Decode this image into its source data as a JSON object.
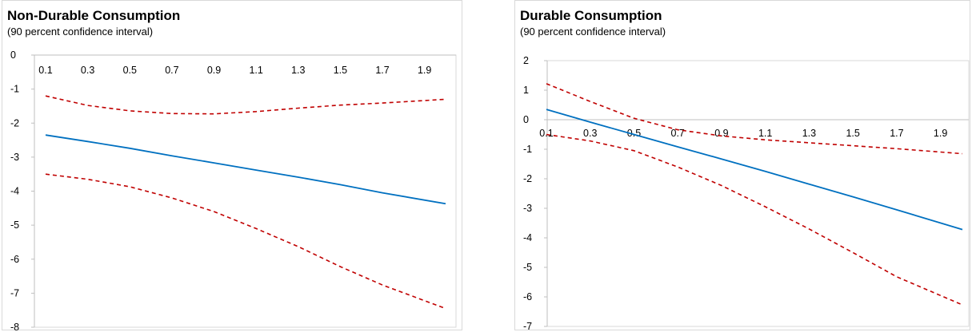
{
  "chart_data": [
    {
      "type": "line",
      "title": "Non-Durable Consumption",
      "subtitle": "(90 percent confidence interval)",
      "x": [
        0.1,
        0.3,
        0.5,
        0.7,
        0.9,
        1.1,
        1.3,
        1.5,
        1.7,
        1.9
      ],
      "xticks": [
        "0.1",
        "0.3",
        "0.5",
        "0.7",
        "0.9",
        "1.1",
        "1.3",
        "1.5",
        "1.7",
        "1.9"
      ],
      "xlim": [
        0.1,
        2.0
      ],
      "ylim": [
        -8,
        0
      ],
      "yticks": [
        0,
        -1,
        -2,
        -3,
        -4,
        -5,
        -6,
        -7,
        -8
      ],
      "xaxis_position": "top",
      "grid": false,
      "series": [
        {
          "role": "estimate",
          "color": "#0070C0",
          "dash": false,
          "points": [
            [
              0.1,
              -2.35
            ],
            [
              0.3,
              -2.54
            ],
            [
              0.5,
              -2.74
            ],
            [
              0.7,
              -2.96
            ],
            [
              0.9,
              -3.17
            ],
            [
              1.1,
              -3.38
            ],
            [
              1.3,
              -3.59
            ],
            [
              1.5,
              -3.81
            ],
            [
              1.7,
              -4.05
            ],
            [
              2.0,
              -4.37
            ]
          ]
        },
        {
          "role": "upper",
          "color": "#C00000",
          "dash": true,
          "points": [
            [
              0.1,
              -1.2
            ],
            [
              0.3,
              -1.48
            ],
            [
              0.5,
              -1.64
            ],
            [
              0.7,
              -1.72
            ],
            [
              0.9,
              -1.73
            ],
            [
              1.1,
              -1.66
            ],
            [
              1.3,
              -1.56
            ],
            [
              1.5,
              -1.47
            ],
            [
              1.7,
              -1.41
            ],
            [
              2.0,
              -1.3
            ]
          ]
        },
        {
          "role": "lower",
          "color": "#C00000",
          "dash": true,
          "points": [
            [
              0.1,
              -3.5
            ],
            [
              0.3,
              -3.65
            ],
            [
              0.5,
              -3.87
            ],
            [
              0.7,
              -4.2
            ],
            [
              0.9,
              -4.6
            ],
            [
              1.1,
              -5.1
            ],
            [
              1.3,
              -5.63
            ],
            [
              1.5,
              -6.22
            ],
            [
              1.7,
              -6.76
            ],
            [
              2.0,
              -7.45
            ]
          ]
        }
      ]
    },
    {
      "type": "line",
      "title": "Durable Consumption",
      "subtitle": "(90 percent confidence interval)",
      "x": [
        0.1,
        0.3,
        0.5,
        0.7,
        0.9,
        1.1,
        1.3,
        1.5,
        1.7,
        1.9
      ],
      "xticks": [
        "0.1",
        "0.3",
        "0.5",
        "0.7",
        "0.9",
        "1.1",
        "1.3",
        "1.5",
        "1.7",
        "1.9"
      ],
      "xlim": [
        0.1,
        2.0
      ],
      "ylim": [
        -7,
        2
      ],
      "yticks": [
        2,
        1,
        0,
        -1,
        -2,
        -3,
        -4,
        -5,
        -6,
        -7
      ],
      "xaxis_position": "at zero",
      "grid": false,
      "series": [
        {
          "role": "estimate",
          "color": "#0070C0",
          "dash": false,
          "points": [
            [
              0.1,
              0.35
            ],
            [
              0.3,
              -0.08
            ],
            [
              0.5,
              -0.5
            ],
            [
              0.7,
              -0.92
            ],
            [
              0.9,
              -1.33
            ],
            [
              1.1,
              -1.75
            ],
            [
              1.3,
              -2.18
            ],
            [
              1.5,
              -2.61
            ],
            [
              1.7,
              -3.05
            ],
            [
              2.0,
              -3.72
            ]
          ]
        },
        {
          "role": "upper",
          "color": "#C00000",
          "dash": true,
          "points": [
            [
              0.1,
              1.22
            ],
            [
              0.3,
              0.62
            ],
            [
              0.5,
              0.05
            ],
            [
              0.7,
              -0.34
            ],
            [
              0.9,
              -0.55
            ],
            [
              1.1,
              -0.68
            ],
            [
              1.3,
              -0.78
            ],
            [
              1.5,
              -0.88
            ],
            [
              1.7,
              -0.98
            ],
            [
              2.0,
              -1.15
            ]
          ]
        },
        {
          "role": "lower",
          "color": "#C00000",
          "dash": true,
          "points": [
            [
              0.1,
              -0.5
            ],
            [
              0.3,
              -0.72
            ],
            [
              0.5,
              -1.05
            ],
            [
              0.7,
              -1.6
            ],
            [
              0.9,
              -2.23
            ],
            [
              1.1,
              -2.95
            ],
            [
              1.3,
              -3.7
            ],
            [
              1.5,
              -4.5
            ],
            [
              1.7,
              -5.32
            ],
            [
              2.0,
              -6.27
            ]
          ]
        }
      ]
    }
  ]
}
